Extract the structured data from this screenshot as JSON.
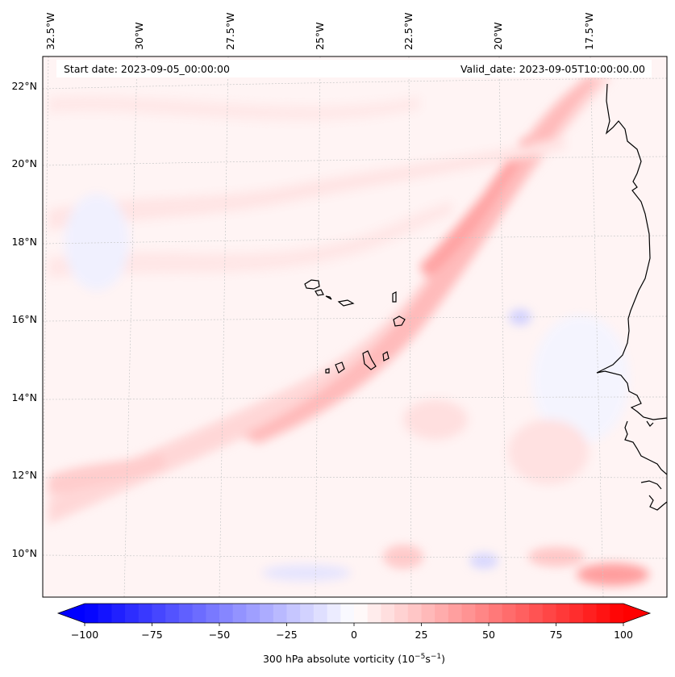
{
  "header": {
    "start_date": "Start date: 2023-09-05_00:00:00",
    "valid_date": "Valid_date: 2023-09-05T10:00:00.00"
  },
  "lon_labels": [
    "32.5°W",
    "30°W",
    "27.5°W",
    "25°W",
    "22.5°W",
    "20°W",
    "17.5°W"
  ],
  "lat_labels": [
    "22°N",
    "20°N",
    "18°N",
    "16°N",
    "14°N",
    "12°N",
    "10°N"
  ],
  "colorbar": {
    "ticks": [
      "−100",
      "−75",
      "−50",
      "−25",
      "0",
      "25",
      "50",
      "75",
      "100"
    ],
    "label": "300 hPa absolute vorticity (10",
    "label_exp1": "−5",
    "label_mid": "s",
    "label_exp2": "−1",
    "label_end": ")",
    "min": -100,
    "max": 100,
    "colors": {
      "neg": "#0000ff",
      "zero": "#ffffff",
      "pos": "#ff0000"
    }
  },
  "map_style": {
    "coast": "#000000",
    "grid": "#c8c8c8",
    "background": "#fff5f5"
  }
}
